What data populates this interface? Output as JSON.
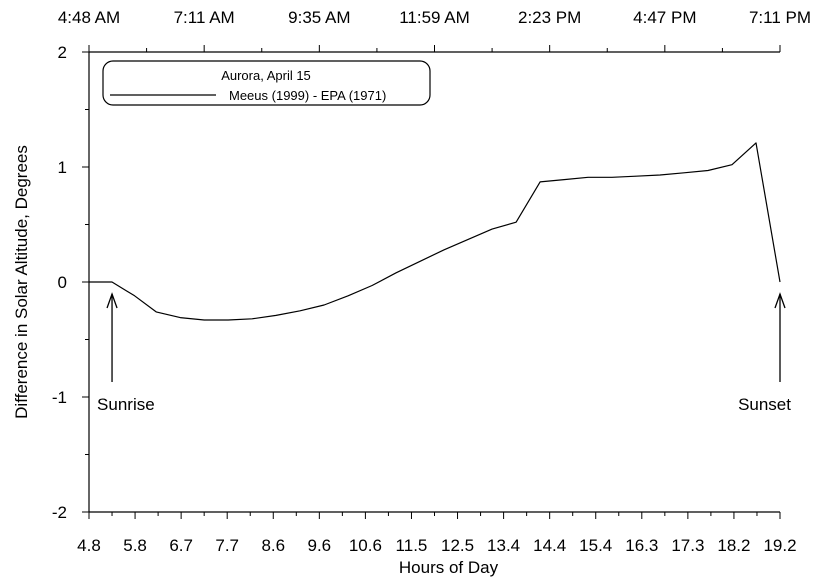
{
  "chart_data": {
    "type": "line",
    "xlabel": "Hours of Day",
    "ylabel": "Difference in Solar Altitude, Degrees",
    "xlim": [
      4.8,
      19.2
    ],
    "ylim": [
      -2,
      2
    ],
    "x_tick_labels": [
      "4.8",
      "5.8",
      "6.7",
      "7.7",
      "8.6",
      "9.6",
      "10.6",
      "11.5",
      "12.5",
      "13.4",
      "14.4",
      "15.4",
      "16.3",
      "17.3",
      "18.2",
      "19.2"
    ],
    "y_ticks": [
      -2,
      -1,
      0,
      1,
      2
    ],
    "y_tick_labels": [
      "-2",
      "-1",
      "0",
      "1",
      "2"
    ],
    "top_axis_labels": [
      "4:48 AM",
      "7:11 AM",
      "9:35 AM",
      "11:59 AM",
      "2:23 PM",
      "4:47 PM",
      "7:11 PM"
    ],
    "legend": {
      "title": "Aurora, April 15",
      "placement": "top-left"
    },
    "series": [
      {
        "name": "Meeus (1999) - EPA (1971)",
        "color": "#000000",
        "points": [
          [
            4.8,
            0.0
          ],
          [
            5.28,
            0.0
          ],
          [
            5.75,
            -0.12
          ],
          [
            6.2,
            -0.26
          ],
          [
            6.7,
            -0.31
          ],
          [
            7.2,
            -0.33
          ],
          [
            7.7,
            -0.33
          ],
          [
            8.2,
            -0.32
          ],
          [
            8.7,
            -0.29
          ],
          [
            9.2,
            -0.25
          ],
          [
            9.7,
            -0.2
          ],
          [
            10.2,
            -0.12
          ],
          [
            10.7,
            -0.03
          ],
          [
            11.2,
            0.08
          ],
          [
            11.7,
            0.18
          ],
          [
            12.2,
            0.28
          ],
          [
            12.7,
            0.37
          ],
          [
            13.2,
            0.46
          ],
          [
            13.7,
            0.52
          ],
          [
            14.2,
            0.87
          ],
          [
            14.7,
            0.89
          ],
          [
            15.2,
            0.91
          ],
          [
            15.7,
            0.91
          ],
          [
            16.2,
            0.92
          ],
          [
            16.7,
            0.93
          ],
          [
            17.2,
            0.95
          ],
          [
            17.7,
            0.97
          ],
          [
            18.2,
            1.02
          ],
          [
            18.7,
            1.21
          ],
          [
            19.2,
            0.0
          ]
        ]
      }
    ],
    "annotations": [
      {
        "text": "Sunrise",
        "x": 5.28,
        "y": 0.0
      },
      {
        "text": "Sunset",
        "x": 19.2,
        "y": 0.0
      }
    ]
  }
}
